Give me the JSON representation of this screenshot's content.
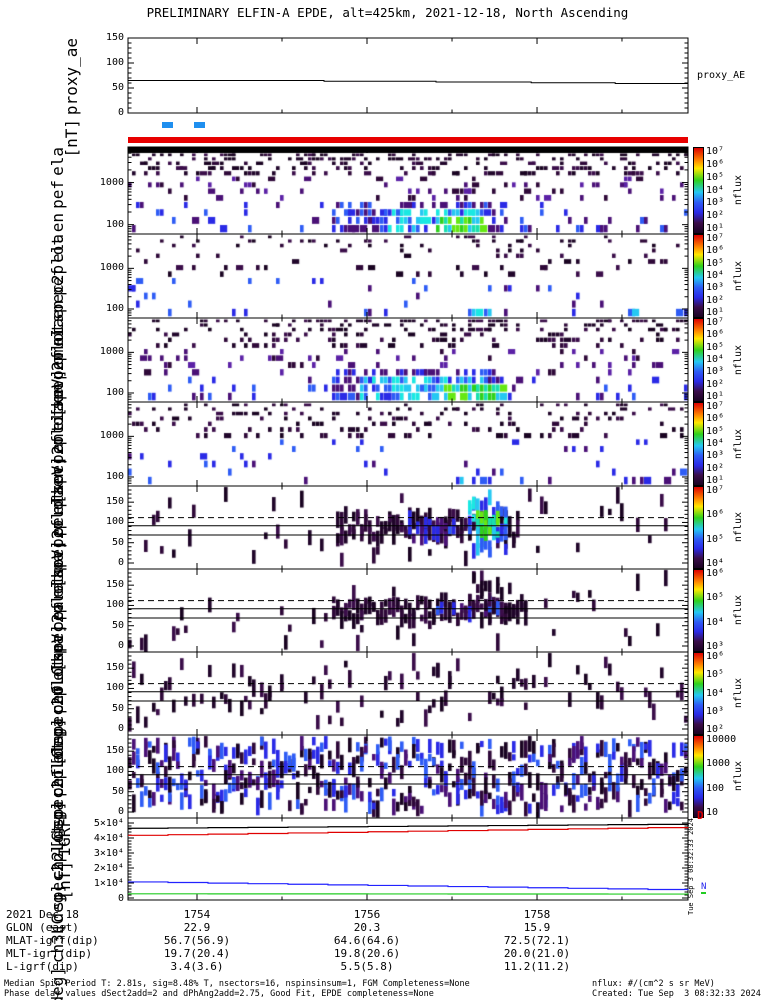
{
  "title": "PRELIMINARY ELFIN-A EPDE, alt=425km, 2021-12-18, North Ascending",
  "side_timestamp": "Tue Sep  3 08:32:33 2024",
  "glyphs": {
    "d": "D",
    "n": "N"
  },
  "footer": {
    "line1": "Median Spin Period T: 2.81s, sig=8.48% T, nsectors=16, nspinsinsum=1, FGM Completeness=None",
    "line2": "Phase delay values dSect2add=2 and dPhAng2add=2.75, Good Fit, EPDE completeness=None",
    "nflux_unit": "nflux: #/(cm^2 s sr MeV)",
    "created": "Created: Tue Sep  3 08:32:33 2024"
  },
  "table": {
    "col_fracs": [
      0.1232,
      0.4268,
      0.7304
    ],
    "rows": [
      {
        "label": "2021 Dec 18",
        "values": [
          "1754",
          "1756",
          "1758"
        ]
      },
      {
        "label": "GLON (east)",
        "values": [
          "22.9",
          "20.3",
          "15.9"
        ]
      },
      {
        "label": "MLAT-igrf(dip)",
        "values": [
          "56.7(56.9)",
          "64.6(64.6)",
          "72.5(72.1)"
        ]
      },
      {
        "label": "MLT-igrf(dip)",
        "values": [
          "19.7(20.4)",
          "19.8(20.6)",
          "20.0(21.0)"
        ]
      },
      {
        "label": "L-igrf(dip)",
        "values": [
          "3.4(3.6)",
          "5.5(5.8)",
          "11.2(11.2)"
        ]
      }
    ]
  },
  "chart_data": {
    "type": "heatmap",
    "x_axis": {
      "major_labels": [
        "1754",
        "1756",
        "1758"
      ],
      "major_fracs": [
        0.1232,
        0.4268,
        0.7304
      ],
      "minor_fracs": [
        0.275,
        0.5786,
        0.8821
      ]
    },
    "status_bar_color": "#e80000",
    "availability_marks": {
      "color": "#1f8fef",
      "segments": [
        [
          0.0607,
          0.0804
        ],
        [
          0.1179,
          0.1375
        ]
      ]
    },
    "proxy": {
      "left_labels": [
        "proxy_ae",
        "[nT]"
      ],
      "right_label": "proxy_AE",
      "ylim": [
        0,
        150
      ],
      "ytick_labels": [
        {
          "v": 0,
          "t": "0"
        },
        {
          "v": 50,
          "t": "50"
        },
        {
          "v": 100,
          "t": "100"
        },
        {
          "v": 150,
          "t": "150"
        }
      ],
      "series": {
        "name": "proxy_AE",
        "color": "#000000",
        "x_frac": [
          0,
          0.35,
          0.55,
          0.72,
          0.87,
          1.0
        ],
        "y": [
          65,
          63.5,
          62,
          60.5,
          59,
          57.5
        ]
      }
    },
    "palettes": {
      "dark": [
        "#190321",
        "#2e0838",
        "#20052a",
        "#3a0d49"
      ],
      "purple": [
        "#2e0838",
        "#4a1076",
        "#5b21a6"
      ],
      "blue": [
        "#2a2ae6",
        "#2e5cf5",
        "#4a1076"
      ],
      "cyan": [
        "#2e5cf5",
        "#25c8f2",
        "#1ae8e2",
        "#2a2ae6"
      ],
      "green": [
        "#2fd11c",
        "#66e812",
        "#25c8f2",
        "#18dfae"
      ],
      "mix": [
        "#190321",
        "#2e0838",
        "#4a1076",
        "#2a2ae6",
        "#2e5cf5"
      ]
    },
    "colorbar_gradient": [
      [
        0,
        "#dd0000"
      ],
      [
        0.15,
        "#ff8a00"
      ],
      [
        0.24,
        "#ffe800"
      ],
      [
        0.38,
        "#2fd11c"
      ],
      [
        0.52,
        "#25c8f2"
      ],
      [
        0.64,
        "#2e5cf5"
      ],
      [
        0.76,
        "#2a2ae6"
      ],
      [
        0.88,
        "#3a0d49"
      ],
      [
        1,
        "#1a0322"
      ]
    ],
    "panels": [
      {
        "id": "en_omni",
        "scale": "log",
        "ylim": [
          60,
          7000
        ],
        "seed": 11,
        "top_bar": true,
        "label_lines": [
          "ela",
          "pef",
          "en",
          "spec2plot",
          "omni",
          "[keV]"
        ],
        "ytick_labels": [
          {
            "v": 1000,
            "t": "1000"
          },
          {
            "v": 100,
            "t": "100"
          }
        ],
        "colorbar_labels": [
          "10⁷",
          "10⁶",
          "10⁵",
          "10⁴",
          "10³",
          "10²",
          "10¹"
        ],
        "colorbar_title": "nflux",
        "zones": [
          {
            "rf": [
              0,
              0.07
            ],
            "d": 0.55,
            "pal": "dark"
          },
          {
            "rf": [
              0.07,
              0.35
            ],
            "d": 0.3,
            "pal": "dark"
          },
          {
            "rf": [
              0.35,
              0.6
            ],
            "d": 0.13,
            "pal": "purple"
          },
          {
            "rf": [
              0.6,
              1
            ],
            "d": 0.07,
            "pal": "blue"
          }
        ],
        "blobs": [
          {
            "x": [
              0.36,
              0.67
            ],
            "rf": [
              0.62,
              1
            ],
            "d": 0.55,
            "pal": "blue"
          },
          {
            "x": [
              0.45,
              0.63
            ],
            "rf": [
              0.72,
              1
            ],
            "d": 0.8,
            "pal": "cyan"
          },
          {
            "x": [
              0.55,
              0.63
            ],
            "rf": [
              0.8,
              1
            ],
            "d": 0.9,
            "pal": "green"
          },
          {
            "x": [
              0.66,
              0.78
            ],
            "rf": [
              0.72,
              1
            ],
            "d": 0.3,
            "pal": "blue"
          },
          {
            "x": [
              0.77,
              0.93
            ],
            "rf": [
              0.78,
              1
            ],
            "d": 0.35,
            "pal": "blue"
          }
        ]
      },
      {
        "id": "en_anti",
        "scale": "log",
        "ylim": [
          60,
          7000
        ],
        "seed": 22,
        "label_lines": [
          "ela",
          "pef",
          "en",
          "spec2plot",
          "anti",
          "[keV]"
        ],
        "ytick_labels": [
          {
            "v": 1000,
            "t": "1000"
          },
          {
            "v": 100,
            "t": "100"
          }
        ],
        "colorbar_labels": [
          "10⁷",
          "10⁶",
          "10⁵",
          "10⁴",
          "10³",
          "10²",
          "10¹"
        ],
        "colorbar_title": "nflux",
        "zones": [
          {
            "rf": [
              0,
              0.5
            ],
            "d": 0.09,
            "pal": "dark"
          },
          {
            "rf": [
              0.5,
              1
            ],
            "d": 0.045,
            "pal": "blue"
          }
        ],
        "blobs": [
          {
            "x": [
              0.6,
              0.65
            ],
            "rf": [
              0.85,
              1
            ],
            "d": 0.5,
            "pal": "cyan"
          },
          {
            "x": [
              0.87,
              0.92
            ],
            "rf": [
              0.9,
              1
            ],
            "d": 0.35,
            "pal": "cyan"
          }
        ]
      },
      {
        "id": "en_perp",
        "scale": "log",
        "ylim": [
          60,
          7000
        ],
        "seed": 33,
        "label_lines": [
          "ela",
          "pef",
          "en",
          "spec2plot",
          "perp",
          "[keV]"
        ],
        "ytick_labels": [
          {
            "v": 1000,
            "t": "1000"
          },
          {
            "v": 100,
            "t": "100"
          }
        ],
        "colorbar_labels": [
          "10⁷",
          "10⁶",
          "10⁵",
          "10⁴",
          "10³",
          "10²",
          "10¹"
        ],
        "colorbar_title": "nflux",
        "zones": [
          {
            "rf": [
              0,
              0.07
            ],
            "d": 0.35,
            "pal": "dark"
          },
          {
            "rf": [
              0.07,
              0.4
            ],
            "d": 0.2,
            "pal": "dark"
          },
          {
            "rf": [
              0.4,
              0.65
            ],
            "d": 0.1,
            "pal": "purple"
          },
          {
            "rf": [
              0.65,
              1
            ],
            "d": 0.07,
            "pal": "blue"
          }
        ],
        "blobs": [
          {
            "x": [
              0.36,
              0.665
            ],
            "rf": [
              0.6,
              1
            ],
            "d": 0.55,
            "pal": "blue"
          },
          {
            "x": [
              0.41,
              0.63
            ],
            "rf": [
              0.72,
              1
            ],
            "d": 0.75,
            "pal": "cyan"
          },
          {
            "x": [
              0.557,
              0.665
            ],
            "rf": [
              0.8,
              1
            ],
            "d": 0.85,
            "pal": "green"
          },
          {
            "x": [
              0.67,
              1.0
            ],
            "rf": [
              0.8,
              1
            ],
            "d": 0.12,
            "pal": "blue"
          }
        ]
      },
      {
        "id": "en_para",
        "scale": "log",
        "ylim": [
          60,
          7000
        ],
        "seed": 44,
        "label_lines": [
          "ela",
          "pef",
          "en",
          "spec2plot",
          "para",
          "[keV]"
        ],
        "ytick_labels": [
          {
            "v": 1000,
            "t": "1000"
          },
          {
            "v": 100,
            "t": "100"
          }
        ],
        "colorbar_labels": [
          "10⁷",
          "10⁶",
          "10⁵",
          "10⁴",
          "10³",
          "10²",
          "10¹"
        ],
        "colorbar_title": "nflux",
        "zones": [
          {
            "rf": [
              0,
              0.45
            ],
            "d": 0.15,
            "pal": "dark"
          },
          {
            "rf": [
              0.45,
              1
            ],
            "d": 0.05,
            "pal": "blue"
          }
        ],
        "blobs": [
          {
            "x": [
              0.585,
              0.65
            ],
            "rf": [
              0.88,
              1
            ],
            "d": 0.45,
            "pal": "cyan"
          },
          {
            "x": [
              0.77,
              0.92
            ],
            "rf": [
              0.85,
              1
            ],
            "d": 0.3,
            "pal": "blue"
          }
        ]
      },
      {
        "id": "pa_ch0lc",
        "scale": "linear",
        "ylim": [
          0,
          180
        ],
        "seed": 55,
        "bg": 0.25,
        "label_lines": [
          "ela",
          "pef",
          "pa",
          "spec2plot",
          "ch0LC",
          "[deg]"
        ],
        "ytick_labels": [
          {
            "v": 150,
            "t": "150"
          },
          {
            "v": 100,
            "t": "100"
          },
          {
            "v": 50,
            "t": "50"
          },
          {
            "v": 0,
            "t": "0"
          }
        ],
        "colorbar_labels": [
          "10⁷",
          "10⁶",
          "10⁵",
          "10⁴"
        ],
        "colorbar_title": "nflux",
        "lines": {
          "solid": [
            92,
            69
          ],
          "dashed": [
            112
          ]
        },
        "bands": [
          {
            "x": [
              0.37,
              0.7
            ],
            "pa": [
              55,
              120
            ],
            "n": 2.2,
            "pal": "dark"
          },
          {
            "x": [
              0.5,
              0.585
            ],
            "pa": [
              60,
              115
            ],
            "n": 1.5,
            "pal": "blue"
          },
          {
            "x": [
              0.607,
              0.673
            ],
            "pa": [
              25,
              165
            ],
            "n": 4.0,
            "pal": "cyan"
          },
          {
            "x": [
              0.615,
              0.66
            ],
            "pa": [
              70,
              120
            ],
            "n": 3.0,
            "pal": "green"
          }
        ]
      },
      {
        "id": "pa_ch1lc",
        "scale": "linear",
        "ylim": [
          0,
          180
        ],
        "seed": 66,
        "bg": 0.3,
        "label_lines": [
          "ela",
          "pef",
          "pa",
          "spec2plot",
          "ch1LC",
          "[deg]"
        ],
        "ytick_labels": [
          {
            "v": 150,
            "t": "150"
          },
          {
            "v": 100,
            "t": "100"
          },
          {
            "v": 50,
            "t": "50"
          },
          {
            "v": 0,
            "t": "0"
          }
        ],
        "colorbar_labels": [
          "10⁶",
          "10⁵",
          "10⁴",
          "10³"
        ],
        "colorbar_title": "nflux",
        "lines": {
          "solid": [
            92,
            69
          ],
          "dashed": [
            112
          ]
        },
        "bands": [
          {
            "x": [
              0.36,
              0.71
            ],
            "pa": [
              60,
              115
            ],
            "n": 2.0,
            "pal": "dark"
          },
          {
            "x": [
              0.5,
              0.67
            ],
            "pa": [
              70,
              110
            ],
            "n": 0.4,
            "pal": "blue"
          },
          {
            "x": [
              0.614,
              0.673
            ],
            "pa": [
              15,
              170
            ],
            "n": 2.0,
            "pal": "dark"
          }
        ]
      },
      {
        "id": "pa_ch2lc",
        "scale": "linear",
        "ylim": [
          0,
          180
        ],
        "seed": 77,
        "bg": 0.55,
        "label_lines": [
          "ela",
          "pef",
          "pa",
          "spec2plot",
          "ch2LC",
          "[deg]"
        ],
        "ytick_labels": [
          {
            "v": 150,
            "t": "150"
          },
          {
            "v": 100,
            "t": "100"
          },
          {
            "v": 50,
            "t": "50"
          },
          {
            "v": 0,
            "t": "0"
          }
        ],
        "colorbar_labels": [
          "10⁶",
          "10⁵",
          "10⁴",
          "10³",
          "10²"
        ],
        "colorbar_title": "nflux",
        "lines": {
          "solid": [
            92,
            69
          ],
          "dashed": [
            112
          ]
        },
        "bands": [
          {
            "x": [
              0.2,
              0.72
            ],
            "pa": [
              50,
              150
            ],
            "n": 0.35,
            "pal": "dark"
          }
        ]
      },
      {
        "id": "pa_ch3lc",
        "scale": "linear",
        "ylim": [
          0,
          180
        ],
        "seed": 88,
        "bg": 3.4,
        "bg_pal": "mix",
        "label_lines": [
          "ela",
          "pef",
          "pa",
          "spec2plot",
          "ch3LC",
          "[deg]"
        ],
        "ytick_labels": [
          {
            "v": 150,
            "t": "150"
          },
          {
            "v": 100,
            "t": "100"
          },
          {
            "v": 50,
            "t": "50"
          },
          {
            "v": 0,
            "t": "0"
          }
        ],
        "colorbar_labels": [
          "10000",
          "1000",
          "100",
          "10"
        ],
        "colorbar_title": "nflux",
        "lines": {
          "solid": [
            92,
            69
          ],
          "dashed": [
            112
          ]
        },
        "bands": []
      }
    ],
    "igrf": {
      "left_labels": [
        "IGRF",
        "[nT]"
      ],
      "ylim": [
        0,
        50000
      ],
      "ytick_labels": [
        {
          "v": 50000,
          "t": "5×10⁴"
        },
        {
          "v": 40000,
          "t": "4×10⁴"
        },
        {
          "v": 30000,
          "t": "3×10⁴"
        },
        {
          "v": 20000,
          "t": "2×10⁴"
        },
        {
          "v": 10000,
          "t": "1×10⁴"
        },
        {
          "v": 0,
          "t": "0"
        }
      ],
      "series": [
        {
          "name": "total",
          "color": "#000000",
          "y": [
            46500,
            49300
          ]
        },
        {
          "name": "comp-red",
          "color": "#e00000",
          "y": [
            41800,
            47300
          ]
        },
        {
          "name": "comp-blue",
          "color": "#2222ff",
          "y": [
            10700,
            5300
          ]
        },
        {
          "name": "comp-green",
          "color": "#22cc22",
          "y": [
            2800,
            2600
          ]
        }
      ]
    }
  }
}
